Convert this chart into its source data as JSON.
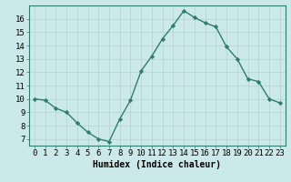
{
  "x": [
    0,
    1,
    2,
    3,
    4,
    5,
    6,
    7,
    8,
    9,
    10,
    11,
    12,
    13,
    14,
    15,
    16,
    17,
    18,
    19,
    20,
    21,
    22,
    23
  ],
  "y": [
    10.0,
    9.9,
    9.3,
    9.0,
    8.2,
    7.5,
    7.0,
    6.8,
    8.5,
    9.9,
    12.1,
    13.2,
    14.5,
    15.5,
    16.6,
    16.1,
    15.7,
    15.4,
    13.9,
    13.0,
    11.5,
    11.3,
    10.0,
    9.7
  ],
  "line_color": "#2e7d6e",
  "marker": "D",
  "marker_size": 2.2,
  "line_width": 1.0,
  "bg_color": "#cce9e9",
  "grid_color": "#b8d4d4",
  "xlabel": "Humidex (Indice chaleur)",
  "xlim": [
    -0.5,
    23.5
  ],
  "ylim": [
    6.5,
    17.0
  ],
  "yticks": [
    7,
    8,
    9,
    10,
    11,
    12,
    13,
    14,
    15,
    16
  ],
  "xtick_labels": [
    "0",
    "1",
    "2",
    "3",
    "4",
    "5",
    "6",
    "7",
    "8",
    "9",
    "10",
    "11",
    "12",
    "13",
    "14",
    "15",
    "16",
    "17",
    "18",
    "19",
    "20",
    "21",
    "22",
    "23"
  ],
  "xlabel_fontsize": 7,
  "tick_fontsize": 6.5,
  "spine_color": "#2e7d6e",
  "axis_bg": "#cce9e9"
}
